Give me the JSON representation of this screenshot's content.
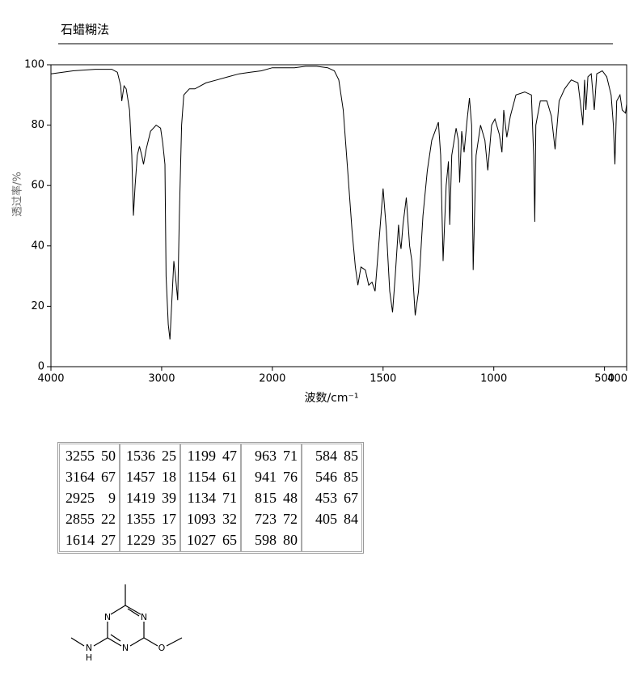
{
  "chart_data": {
    "type": "line",
    "title": "石蜡糊法",
    "x_label": "波数/cm⁻¹",
    "y_label": "透过率/%",
    "xlim": [
      4000,
      400
    ],
    "ylim": [
      0,
      100
    ],
    "xticks": [
      4000,
      3000,
      2000,
      1500,
      1000,
      500,
      400
    ],
    "yticks": [
      0,
      20,
      40,
      60,
      80,
      100
    ],
    "x_scale_break": 2000,
    "color": "#000000",
    "x": [
      4000,
      3800,
      3600,
      3450,
      3400,
      3370,
      3360,
      3340,
      3320,
      3290,
      3270,
      3255,
      3240,
      3220,
      3200,
      3180,
      3164,
      3140,
      3100,
      3050,
      3010,
      2990,
      2970,
      2960,
      2940,
      2925,
      2910,
      2890,
      2875,
      2855,
      2840,
      2820,
      2800,
      2750,
      2700,
      2600,
      2500,
      2400,
      2300,
      2200,
      2100,
      2000,
      1900,
      1850,
      1800,
      1750,
      1720,
      1700,
      1680,
      1660,
      1640,
      1625,
      1614,
      1600,
      1580,
      1565,
      1550,
      1536,
      1520,
      1500,
      1485,
      1470,
      1457,
      1445,
      1430,
      1425,
      1419,
      1410,
      1395,
      1380,
      1370,
      1355,
      1340,
      1320,
      1300,
      1280,
      1250,
      1240,
      1229,
      1215,
      1205,
      1199,
      1190,
      1170,
      1160,
      1154,
      1145,
      1134,
      1120,
      1110,
      1100,
      1093,
      1080,
      1060,
      1040,
      1027,
      1010,
      995,
      975,
      963,
      955,
      941,
      925,
      900,
      860,
      830,
      820,
      815,
      810,
      790,
      760,
      740,
      723,
      705,
      680,
      650,
      620,
      600,
      598,
      590,
      584,
      575,
      560,
      546,
      535,
      510,
      490,
      470,
      460,
      453,
      445,
      430,
      420,
      405,
      400
    ],
    "values": [
      97,
      98,
      98.5,
      98.5,
      97.5,
      93,
      88,
      93,
      92,
      85,
      70,
      50,
      60,
      70,
      73,
      70,
      67,
      72,
      78,
      80,
      79,
      74,
      67,
      30,
      14,
      9,
      20,
      35,
      30,
      22,
      50,
      80,
      90,
      92,
      92,
      94,
      95,
      96,
      97,
      97.5,
      98,
      99,
      99,
      99.5,
      99.5,
      99,
      98,
      95,
      85,
      65,
      45,
      33,
      27,
      33,
      32,
      27,
      28,
      25,
      40,
      59,
      45,
      25,
      18,
      30,
      47,
      42,
      39,
      47,
      56,
      40,
      35,
      17,
      25,
      50,
      65,
      75,
      81,
      70,
      35,
      60,
      68,
      47,
      70,
      79,
      75,
      61,
      78,
      71,
      82,
      89,
      80,
      32,
      70,
      80,
      75,
      65,
      80,
      82,
      77,
      71,
      85,
      76,
      83,
      90,
      91,
      90,
      70,
      48,
      80,
      88,
      88,
      83,
      72,
      88,
      92,
      95,
      94,
      82,
      80,
      95,
      85,
      96,
      97,
      85,
      97,
      98,
      96,
      90,
      80,
      67,
      88,
      90,
      85,
      84,
      87
    ]
  },
  "table": {
    "columns": [
      [
        [
          3255,
          50
        ],
        [
          3164,
          67
        ],
        [
          2925,
          9
        ],
        [
          2855,
          22
        ],
        [
          1614,
          27
        ]
      ],
      [
        [
          1536,
          25
        ],
        [
          1457,
          18
        ],
        [
          1419,
          39
        ],
        [
          1355,
          17
        ],
        [
          1229,
          35
        ]
      ],
      [
        [
          1199,
          47
        ],
        [
          1154,
          61
        ],
        [
          1134,
          71
        ],
        [
          1093,
          32
        ],
        [
          1027,
          65
        ]
      ],
      [
        [
          963,
          71
        ],
        [
          941,
          76
        ],
        [
          815,
          48
        ],
        [
          723,
          72
        ],
        [
          598,
          80
        ]
      ],
      [
        [
          584,
          85
        ],
        [
          546,
          85
        ],
        [
          453,
          67
        ],
        [
          405,
          84
        ]
      ]
    ]
  },
  "structure": {
    "atoms": [
      "N",
      "N",
      "N",
      "N",
      "H",
      "O"
    ]
  }
}
